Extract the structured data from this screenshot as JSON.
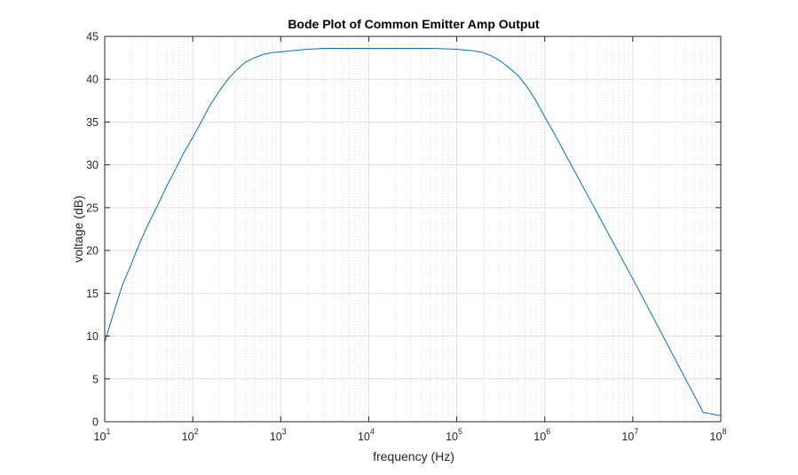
{
  "chart_data": {
    "type": "line",
    "title": "Bode Plot of Common Emitter Amp Output",
    "xlabel": "frequency (Hz)",
    "ylabel": "voltage (dB)",
    "xscale": "log",
    "xlim": [
      10,
      100000000
    ],
    "ylim": [
      0,
      45
    ],
    "x_ticks": [
      {
        "value": 10,
        "base": "10",
        "exp": "1"
      },
      {
        "value": 100,
        "base": "10",
        "exp": "2"
      },
      {
        "value": 1000,
        "base": "10",
        "exp": "3"
      },
      {
        "value": 10000,
        "base": "10",
        "exp": "4"
      },
      {
        "value": 100000,
        "base": "10",
        "exp": "5"
      },
      {
        "value": 1000000,
        "base": "10",
        "exp": "6"
      },
      {
        "value": 10000000,
        "base": "10",
        "exp": "7"
      },
      {
        "value": 100000000,
        "base": "10",
        "exp": "8"
      }
    ],
    "y_ticks": [
      0,
      5,
      10,
      15,
      20,
      25,
      30,
      35,
      40,
      45
    ],
    "grid": true,
    "minor_grid": true,
    "series": [
      {
        "color": "#0072BD",
        "x": [
          10,
          12.6,
          15.8,
          20,
          25,
          31.6,
          40,
          50,
          63,
          79,
          100,
          126,
          158,
          200,
          251,
          316,
          398,
          501,
          631,
          794,
          1000,
          1259,
          1585,
          1995,
          2512,
          3162,
          5012,
          10000,
          20000,
          50000,
          100000,
          158489,
          199526,
          251189,
          316228,
          398107,
          501187,
          630957,
          794328,
          1000000,
          1258925,
          1584893,
          1995262,
          2511886,
          3162278,
          3981072,
          5011872,
          6309573,
          7943282,
          10000000,
          15848932,
          25118864,
          39810717,
          63095734,
          100000000
        ],
        "y": [
          9.3,
          12.7,
          15.9,
          18.4,
          20.9,
          23.2,
          25.3,
          27.4,
          29.4,
          31.4,
          33.2,
          35.1,
          37.0,
          38.6,
          40.0,
          41.1,
          42.0,
          42.5,
          42.9,
          43.1,
          43.2,
          43.3,
          43.4,
          43.5,
          43.55,
          43.6,
          43.6,
          43.6,
          43.6,
          43.6,
          43.5,
          43.3,
          43.1,
          42.7,
          42.1,
          41.3,
          40.4,
          39.1,
          37.5,
          35.6,
          33.8,
          31.9,
          30.0,
          28.1,
          26.2,
          24.3,
          22.4,
          20.5,
          18.6,
          16.7,
          12.8,
          8.9,
          5.0,
          1.1,
          0.7
        ]
      }
    ]
  },
  "colors": {
    "series": "#0072BD",
    "axes": "#262626",
    "grid": "#dfdfdf"
  }
}
